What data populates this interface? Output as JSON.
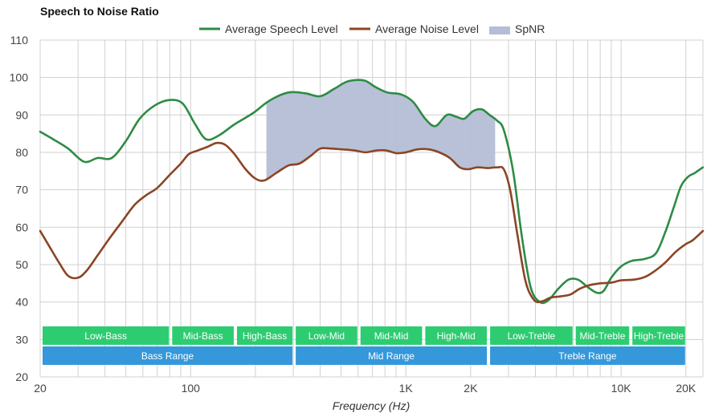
{
  "chart_data": {
    "type": "line",
    "title": "Speech to Noise Ratio",
    "xlabel": "Frequency (Hz)",
    "x_scale": "log",
    "xlim": [
      20,
      24000
    ],
    "ylim": [
      20,
      110
    ],
    "y_ticks": [
      20,
      30,
      40,
      50,
      60,
      70,
      80,
      90,
      100,
      110
    ],
    "x_ticks": [
      {
        "value": 20,
        "label": "20"
      },
      {
        "value": 100,
        "label": "100"
      },
      {
        "value": 1000,
        "label": "1K"
      },
      {
        "value": 2000,
        "label": "2K"
      },
      {
        "value": 10000,
        "label": "10K"
      },
      {
        "value": 20000,
        "label": "20K"
      }
    ],
    "grid": true,
    "legend_position": "top-center",
    "series": [
      {
        "name": "Average Speech Level",
        "color": "#2e8b45",
        "points": [
          [
            20,
            85.5
          ],
          [
            23,
            83.5
          ],
          [
            27,
            81
          ],
          [
            32,
            77.5
          ],
          [
            37,
            78.5
          ],
          [
            43,
            78.5
          ],
          [
            50,
            83
          ],
          [
            58,
            89
          ],
          [
            68,
            92.5
          ],
          [
            80,
            94
          ],
          [
            92,
            93
          ],
          [
            105,
            87.5
          ],
          [
            118,
            83.5
          ],
          [
            135,
            84.5
          ],
          [
            160,
            87.5
          ],
          [
            195,
            90.5
          ],
          [
            235,
            94
          ],
          [
            285,
            96
          ],
          [
            340,
            95.8
          ],
          [
            400,
            95
          ],
          [
            465,
            97
          ],
          [
            540,
            99
          ],
          [
            640,
            99.2
          ],
          [
            720,
            97.5
          ],
          [
            820,
            96
          ],
          [
            950,
            95.5
          ],
          [
            1080,
            93.5
          ],
          [
            1230,
            89
          ],
          [
            1370,
            87
          ],
          [
            1550,
            90
          ],
          [
            1720,
            89.5
          ],
          [
            1870,
            89
          ],
          [
            2050,
            91
          ],
          [
            2250,
            91.5
          ],
          [
            2450,
            90
          ],
          [
            2650,
            88.5
          ],
          [
            2850,
            86
          ],
          [
            3150,
            75
          ],
          [
            3450,
            58
          ],
          [
            3800,
            44
          ],
          [
            4200,
            40
          ],
          [
            4600,
            40.5
          ],
          [
            5100,
            43.5
          ],
          [
            5700,
            46
          ],
          [
            6300,
            46
          ],
          [
            7000,
            44
          ],
          [
            7700,
            42.5
          ],
          [
            8300,
            43
          ],
          [
            9000,
            46.5
          ],
          [
            10000,
            49.5
          ],
          [
            11200,
            51
          ],
          [
            12800,
            51.5
          ],
          [
            14500,
            53
          ],
          [
            16000,
            58.5
          ],
          [
            17500,
            65
          ],
          [
            19000,
            71
          ],
          [
            20500,
            73.5
          ],
          [
            22000,
            74.5
          ],
          [
            24000,
            76
          ]
        ]
      },
      {
        "name": "Average Noise Level",
        "color": "#8b4525",
        "points": [
          [
            20,
            59
          ],
          [
            22,
            55
          ],
          [
            24.5,
            50.5
          ],
          [
            27,
            47
          ],
          [
            30,
            46.5
          ],
          [
            33,
            48.5
          ],
          [
            37,
            52.5
          ],
          [
            42,
            57
          ],
          [
            48,
            61.5
          ],
          [
            55,
            66
          ],
          [
            62,
            68.5
          ],
          [
            70,
            70.5
          ],
          [
            80,
            74
          ],
          [
            90,
            77
          ],
          [
            98,
            79.5
          ],
          [
            108,
            80.5
          ],
          [
            120,
            81.5
          ],
          [
            132,
            82.5
          ],
          [
            145,
            82
          ],
          [
            160,
            79.5
          ],
          [
            180,
            75.5
          ],
          [
            200,
            73
          ],
          [
            220,
            72.5
          ],
          [
            250,
            74.5
          ],
          [
            285,
            76.5
          ],
          [
            320,
            77
          ],
          [
            360,
            79
          ],
          [
            400,
            81
          ],
          [
            450,
            81
          ],
          [
            510,
            80.8
          ],
          [
            580,
            80.5
          ],
          [
            650,
            80
          ],
          [
            730,
            80.5
          ],
          [
            810,
            80.5
          ],
          [
            900,
            79.8
          ],
          [
            1000,
            80
          ],
          [
            1130,
            80.8
          ],
          [
            1280,
            80.8
          ],
          [
            1430,
            80
          ],
          [
            1600,
            78.5
          ],
          [
            1780,
            76
          ],
          [
            1950,
            75.5
          ],
          [
            2150,
            76
          ],
          [
            2400,
            75.8
          ],
          [
            2650,
            76
          ],
          [
            2850,
            75.5
          ],
          [
            3050,
            70
          ],
          [
            3300,
            58
          ],
          [
            3600,
            45.5
          ],
          [
            3950,
            40.5
          ],
          [
            4300,
            40.2
          ],
          [
            4700,
            41.2
          ],
          [
            5200,
            41.5
          ],
          [
            5800,
            42
          ],
          [
            6400,
            43.5
          ],
          [
            7100,
            44.5
          ],
          [
            8000,
            45
          ],
          [
            9000,
            45.2
          ],
          [
            10000,
            45.8
          ],
          [
            11500,
            46
          ],
          [
            13000,
            46.8
          ],
          [
            14500,
            48.5
          ],
          [
            16000,
            50.5
          ],
          [
            18000,
            53.5
          ],
          [
            20000,
            55.5
          ],
          [
            21500,
            56.5
          ],
          [
            24000,
            59
          ]
        ]
      }
    ],
    "area": {
      "name": "SpNR",
      "color": "#b4bed6",
      "x_range": [
        225,
        2600
      ]
    },
    "bands": [
      {
        "label": "Low-Bass",
        "from": 20,
        "to": 80,
        "row": 1,
        "color": "#2ecc71"
      },
      {
        "label": "Mid-Bass",
        "from": 80,
        "to": 160,
        "row": 1,
        "color": "#2ecc71"
      },
      {
        "label": "High-Bass",
        "from": 160,
        "to": 300,
        "row": 1,
        "color": "#2ecc71"
      },
      {
        "label": "Low-Mid",
        "from": 300,
        "to": 600,
        "row": 1,
        "color": "#2ecc71"
      },
      {
        "label": "Mid-Mid",
        "from": 600,
        "to": 1200,
        "row": 1,
        "color": "#2ecc71"
      },
      {
        "label": "High-Mid",
        "from": 1200,
        "to": 2400,
        "row": 1,
        "color": "#2ecc71"
      },
      {
        "label": "Low-Treble",
        "from": 2400,
        "to": 6000,
        "row": 1,
        "color": "#2ecc71"
      },
      {
        "label": "Mid-Treble",
        "from": 6000,
        "to": 11000,
        "row": 1,
        "color": "#2ecc71"
      },
      {
        "label": "High-Treble",
        "from": 11000,
        "to": 20000,
        "row": 1,
        "color": "#2ecc71"
      },
      {
        "label": "Bass Range",
        "from": 20,
        "to": 300,
        "row": 2,
        "color": "#3498db"
      },
      {
        "label": "Mid Range",
        "from": 300,
        "to": 2400,
        "row": 2,
        "color": "#3498db"
      },
      {
        "label": "Treble Range",
        "from": 2400,
        "to": 20000,
        "row": 2,
        "color": "#3498db"
      }
    ]
  }
}
